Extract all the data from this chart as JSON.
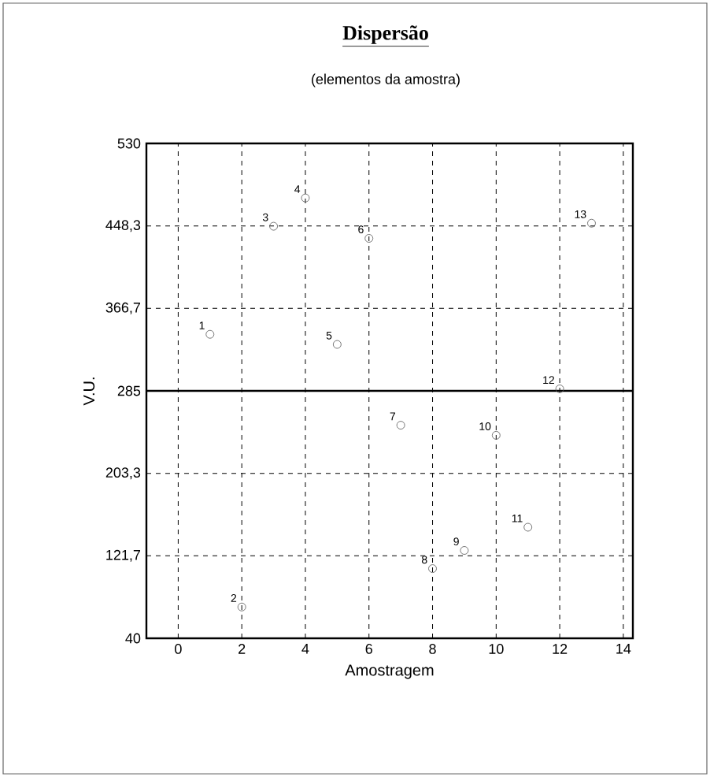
{
  "chart_data": {
    "type": "scatter",
    "title": "Dispersão",
    "subtitle": "(elementos da amostra)",
    "xlabel": "Amostragem",
    "ylabel": "V.U.",
    "x": [
      1,
      2,
      3,
      4,
      5,
      6,
      7,
      8,
      9,
      10,
      11,
      12,
      13
    ],
    "values": [
      341,
      71,
      448,
      476,
      331,
      436,
      251,
      109,
      127,
      241,
      150,
      287,
      451
    ],
    "color": "#555555",
    "marker": "circle",
    "grid": true,
    "xlim": [
      -1,
      14.3
    ],
    "xticks": [
      0,
      2,
      4,
      6,
      8,
      10,
      12,
      14
    ],
    "ylim": [
      40,
      530
    ],
    "yticks": [
      {
        "value": 40,
        "label": "40"
      },
      {
        "value": 121.7,
        "label": "121,7"
      },
      {
        "value": 203.3,
        "label": "203,3"
      },
      {
        "value": 285,
        "label": "285"
      },
      {
        "value": 366.7,
        "label": "366,7"
      },
      {
        "value": 448.3,
        "label": "448,3"
      },
      {
        "value": 530,
        "label": "530"
      }
    ],
    "ref_lines": [
      {
        "axis": "y",
        "value": 285,
        "color": "#000000",
        "line_style": "solid"
      }
    ],
    "annotations": [
      {
        "text": "1",
        "x": 1,
        "y": 341
      },
      {
        "text": "2",
        "x": 2,
        "y": 71
      },
      {
        "text": "3",
        "x": 3,
        "y": 448
      },
      {
        "text": "4",
        "x": 4,
        "y": 476
      },
      {
        "text": "5",
        "x": 5,
        "y": 331
      },
      {
        "text": "6",
        "x": 6,
        "y": 436
      },
      {
        "text": "7",
        "x": 7,
        "y": 251
      },
      {
        "text": "8",
        "x": 8,
        "y": 109
      },
      {
        "text": "9",
        "x": 9,
        "y": 127
      },
      {
        "text": "10",
        "x": 10,
        "y": 241
      },
      {
        "text": "11",
        "x": 11,
        "y": 150
      },
      {
        "text": "12",
        "x": 12,
        "y": 287
      },
      {
        "text": "13",
        "x": 13,
        "y": 451
      }
    ]
  }
}
